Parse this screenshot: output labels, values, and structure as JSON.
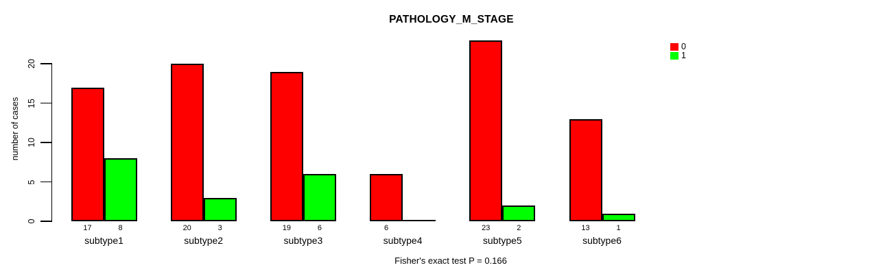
{
  "chart_data": {
    "type": "bar",
    "title": "PATHOLOGY_M_STAGE",
    "xlabel": "",
    "ylabel": "number of cases",
    "categories": [
      "subtype1",
      "subtype2",
      "subtype3",
      "subtype4",
      "subtype5",
      "subtype6"
    ],
    "series": [
      {
        "name": "0",
        "color": "#ff0000",
        "values": [
          17,
          20,
          19,
          6,
          23,
          13
        ]
      },
      {
        "name": "1",
        "color": "#00ff00",
        "values": [
          8,
          3,
          6,
          0,
          2,
          1
        ]
      }
    ],
    "yticks": [
      0,
      5,
      10,
      15,
      20
    ],
    "ylim": [
      0,
      23
    ],
    "grid": false,
    "legend_position": "top-right",
    "bar_value_labels": "counts shown below axis under each bar, omitted when 0",
    "annotation": "Fisher's exact test P = 0.166",
    "colors": {
      "series_0": "#ff0000",
      "series_1": "#00ff00",
      "axis": "#000000",
      "background": "#ffffff",
      "text": "#000000"
    }
  }
}
